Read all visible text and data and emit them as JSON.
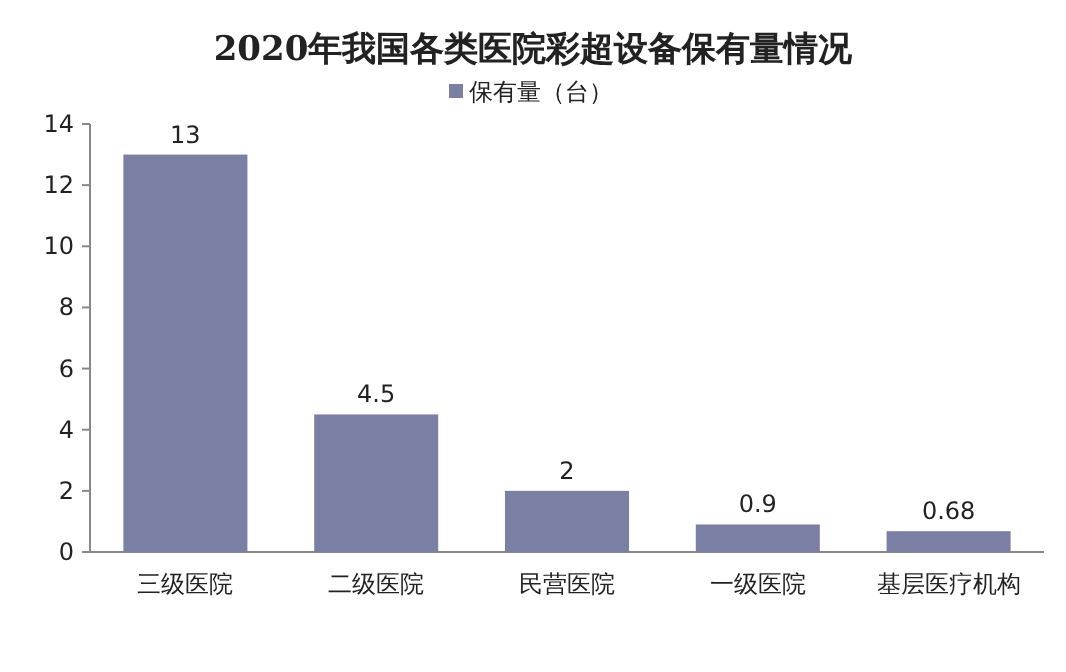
{
  "chart_data": {
    "type": "bar",
    "title": "2020年我国各类医院彩超设备保有量情况",
    "categories": [
      "三级医院",
      "二级医院",
      "民营医院",
      "一级医院",
      "基层医疗机构"
    ],
    "series": [
      {
        "name": "保有量（台）",
        "color": "#7a7fa3",
        "values": [
          13,
          4.5,
          2,
          0.9,
          0.68
        ]
      }
    ],
    "ylim": [
      0,
      14
    ],
    "yticks": [
      0,
      2,
      4,
      6,
      8,
      10,
      12,
      14
    ],
    "data_labels": true,
    "legend": "top",
    "grid": false
  }
}
